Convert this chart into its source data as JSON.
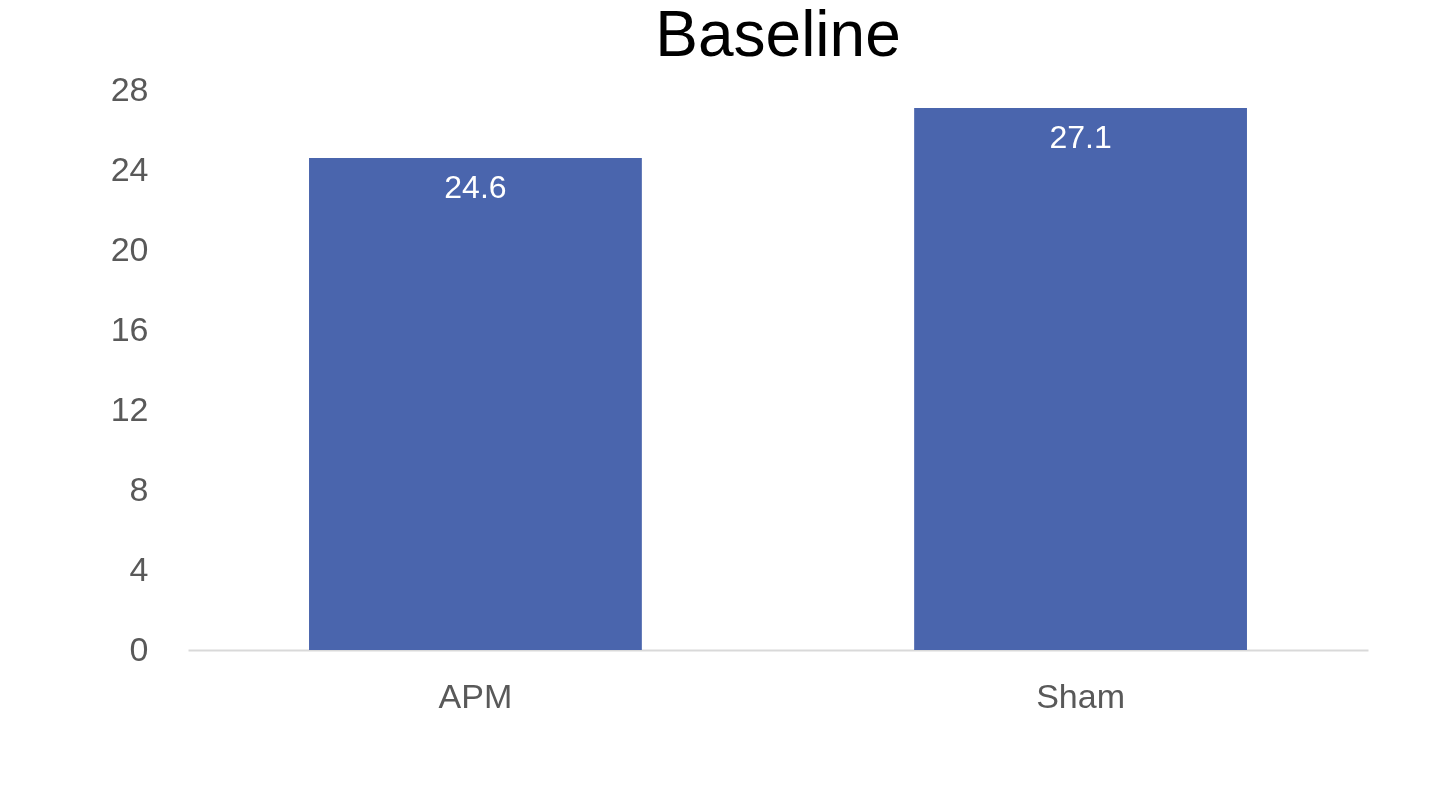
{
  "chart_data": {
    "type": "bar",
    "title": "Baseline",
    "categories": [
      "APM",
      "Sham"
    ],
    "values": [
      24.6,
      27.1
    ],
    "color": "#4a65ad",
    "ylim": [
      0,
      28
    ],
    "yticks": [
      0,
      4,
      8,
      12,
      16,
      20,
      24,
      28
    ],
    "grid": false,
    "data_labels": true
  }
}
